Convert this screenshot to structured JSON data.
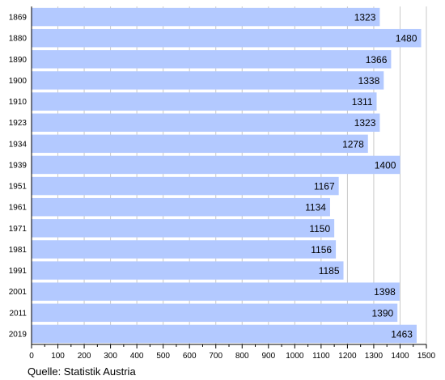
{
  "chart_data": {
    "type": "bar",
    "orientation": "horizontal",
    "categories": [
      "1869",
      "1880",
      "1890",
      "1900",
      "1910",
      "1923",
      "1934",
      "1939",
      "1951",
      "1961",
      "1971",
      "1981",
      "1991",
      "2001",
      "2011",
      "2019"
    ],
    "values": [
      1323,
      1480,
      1366,
      1338,
      1311,
      1323,
      1278,
      1400,
      1167,
      1134,
      1150,
      1156,
      1185,
      1398,
      1390,
      1463
    ],
    "xlim": [
      0,
      1500
    ],
    "xticks": [
      0,
      100,
      200,
      300,
      400,
      500,
      600,
      700,
      800,
      900,
      1000,
      1100,
      1200,
      1300,
      1400,
      1500
    ],
    "grid": "vertical",
    "bar_color": "#b3c9ff",
    "label_position": "inside-end"
  },
  "source": "Quelle: Statistik Austria"
}
